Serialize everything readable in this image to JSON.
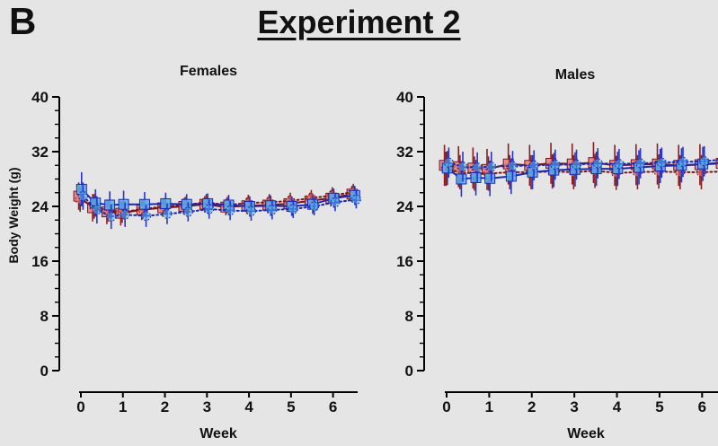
{
  "figure": {
    "panel_letter": "B",
    "title": "Experiment 2"
  },
  "colors": {
    "red_dark": "#7a1418",
    "red_fill": "#e67f7f",
    "blue_dark": "#1a28b8",
    "blue_fill": "#5aaee8",
    "errorbar_red": "#8b1e1e",
    "errorbar_blue": "#2534d0",
    "axis": "#000000"
  },
  "chart_data": [
    {
      "type": "line",
      "title": "Females",
      "xlabel": "Week",
      "ylabel": "Body Weight (g)",
      "xticks": [
        0,
        1,
        2,
        3,
        4,
        5,
        6
      ],
      "yticks": [
        0,
        8,
        16,
        24,
        32,
        40
      ],
      "xlim": [
        0,
        6.5
      ],
      "ylim": [
        0,
        40
      ],
      "grid": false,
      "x": [
        0,
        0.33,
        0.67,
        1,
        1.5,
        2,
        2.5,
        3,
        3.5,
        4,
        4.5,
        5,
        5.5,
        6,
        6.5
      ],
      "series": [
        {
          "color": "red",
          "marker": "square",
          "line": "solid",
          "values": [
            25.5,
            23.8,
            23.2,
            23.0,
            23.5,
            23.8,
            24.0,
            24.3,
            23.9,
            24.1,
            24.2,
            24.4,
            24.8,
            25.2,
            25.8
          ],
          "errors": [
            2.0,
            2.0,
            1.8,
            1.8,
            1.5,
            1.3,
            1.2,
            1.2,
            1.2,
            1.2,
            1.2,
            1.2,
            1.2,
            1.2,
            1.2
          ]
        },
        {
          "color": "red",
          "marker": "circle",
          "line": "dotted",
          "values": [
            25.0,
            24.0,
            23.4,
            23.2,
            23.6,
            24.0,
            24.2,
            24.6,
            24.2,
            24.5,
            24.6,
            24.8,
            25.2,
            25.6,
            26.1
          ],
          "errors": [
            1.8,
            1.8,
            1.6,
            1.6,
            1.4,
            1.2,
            1.2,
            1.2,
            1.2,
            1.2,
            1.2,
            1.2,
            1.2,
            1.2,
            1.2
          ]
        },
        {
          "color": "blue",
          "marker": "square",
          "line": "solid",
          "values": [
            26.5,
            24.5,
            24.2,
            24.3,
            24.3,
            24.4,
            24.3,
            24.4,
            24.2,
            24.0,
            24.1,
            24.0,
            24.3,
            25.2,
            25.6
          ],
          "errors": [
            2.5,
            2.0,
            2.0,
            2.0,
            1.8,
            1.6,
            1.5,
            1.5,
            1.5,
            1.5,
            1.5,
            1.4,
            1.4,
            1.4,
            1.4
          ]
        },
        {
          "color": "blue",
          "marker": "circle",
          "line": "dotted",
          "values": [
            25.5,
            23.5,
            22.5,
            22.8,
            22.6,
            22.9,
            23.2,
            23.6,
            23.4,
            23.3,
            23.5,
            23.6,
            24.0,
            24.6,
            25.0
          ],
          "errors": [
            2.0,
            2.0,
            1.8,
            1.8,
            1.6,
            1.5,
            1.4,
            1.4,
            1.4,
            1.4,
            1.4,
            1.3,
            1.3,
            1.3,
            1.3
          ]
        }
      ]
    },
    {
      "type": "line",
      "title": "Males",
      "xlabel": "Week",
      "ylabel": "",
      "xticks": [
        0,
        1,
        2,
        3,
        4,
        5,
        6
      ],
      "yticks": [
        0,
        8,
        16,
        24,
        32,
        40
      ],
      "xlim": [
        0,
        6.5
      ],
      "ylim": [
        0,
        40
      ],
      "grid": false,
      "x": [
        0,
        0.33,
        0.67,
        1,
        1.5,
        2,
        2.5,
        3,
        3.5,
        4,
        4.5,
        5,
        5.5,
        6,
        6.5
      ],
      "series": [
        {
          "color": "red",
          "marker": "square",
          "line": "solid",
          "values": [
            30.0,
            29.8,
            29.6,
            29.4,
            30.2,
            30.0,
            30.3,
            30.2,
            30.4,
            30.0,
            30.1,
            30.2,
            30.0,
            30.1,
            30.3
          ],
          "errors": [
            3.0,
            3.0,
            3.0,
            3.0,
            3.0,
            3.0,
            3.0,
            3.0,
            3.0,
            3.0,
            3.0,
            3.0,
            3.0,
            3.0,
            3.0
          ]
        },
        {
          "color": "red",
          "marker": "circle",
          "line": "dotted",
          "values": [
            29.5,
            29.0,
            28.8,
            28.8,
            29.0,
            29.0,
            29.1,
            29.0,
            29.2,
            28.9,
            29.0,
            29.1,
            29.0,
            29.0,
            29.1
          ],
          "errors": [
            2.5,
            2.5,
            2.5,
            2.5,
            2.5,
            2.5,
            2.5,
            2.5,
            2.5,
            2.5,
            2.5,
            2.5,
            2.5,
            2.5,
            2.5
          ]
        },
        {
          "color": "blue",
          "marker": "square",
          "line": "solid",
          "values": [
            29.6,
            28.0,
            28.2,
            28.1,
            28.4,
            29.0,
            29.3,
            29.4,
            29.5,
            29.5,
            29.7,
            29.9,
            30.0,
            30.2,
            30.4
          ],
          "errors": [
            2.5,
            2.6,
            2.6,
            2.6,
            2.6,
            2.5,
            2.5,
            2.5,
            2.5,
            2.5,
            2.5,
            2.5,
            2.5,
            2.5,
            2.5
          ]
        },
        {
          "color": "blue",
          "marker": "circle",
          "line": "dotted",
          "values": [
            30.4,
            29.8,
            29.7,
            29.8,
            29.9,
            30.0,
            30.1,
            30.1,
            30.3,
            30.2,
            30.3,
            30.4,
            30.5,
            30.6,
            30.9
          ],
          "errors": [
            2.2,
            2.2,
            2.2,
            2.2,
            2.2,
            2.2,
            2.2,
            2.2,
            2.2,
            2.2,
            2.2,
            2.2,
            2.2,
            2.2,
            2.2
          ]
        }
      ]
    }
  ]
}
